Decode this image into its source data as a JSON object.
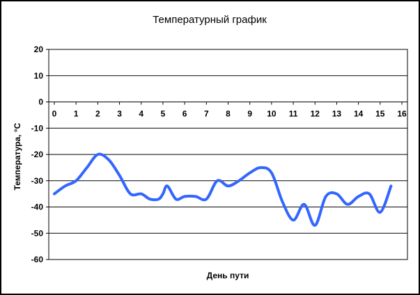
{
  "chart_data": {
    "type": "line",
    "title": "Температурный график",
    "xlabel": "День пути",
    "ylabel": "Температура, °С",
    "xlim": [
      0,
      16
    ],
    "ylim": [
      -60,
      20
    ],
    "x_ticks": [
      0,
      1,
      2,
      3,
      4,
      5,
      6,
      7,
      8,
      9,
      10,
      11,
      12,
      13,
      14,
      15,
      16
    ],
    "y_ticks": [
      20,
      10,
      0,
      -10,
      -20,
      -30,
      -40,
      -50,
      -60
    ],
    "x_tick_labels": [
      "0",
      "1",
      "2",
      "3",
      "4",
      "5",
      "6",
      "7",
      "8",
      "9",
      "10",
      "11",
      "12",
      "13",
      "14",
      "15",
      "16"
    ],
    "y_tick_labels": [
      "20",
      "10",
      "0",
      "-10",
      "-20",
      "-30",
      "-40",
      "-50",
      "-60"
    ],
    "grid": "horizontal",
    "smooth": true,
    "series_color": "#3366ff",
    "series": [
      {
        "x": [
          0,
          0.5,
          1,
          1.5,
          2,
          2.5,
          3,
          3.5,
          4,
          4.4,
          4.8,
          5,
          5.2,
          5.6,
          6,
          6.5,
          7,
          7.5,
          8,
          8.5,
          9,
          9.5,
          10,
          10.5,
          11,
          11.5,
          12,
          12.5,
          13,
          13.5,
          14,
          14.5,
          15,
          15.5
        ],
        "y": [
          -35,
          -32,
          -30,
          -25,
          -20,
          -22,
          -28,
          -35,
          -35,
          -37,
          -37,
          -35,
          -32,
          -37,
          -36,
          -36,
          -37,
          -30,
          -32,
          -30,
          -27,
          -25,
          -27,
          -38,
          -45,
          -39,
          -47,
          -36,
          -35,
          -39,
          -36,
          -35,
          -42,
          -32
        ]
      }
    ]
  }
}
